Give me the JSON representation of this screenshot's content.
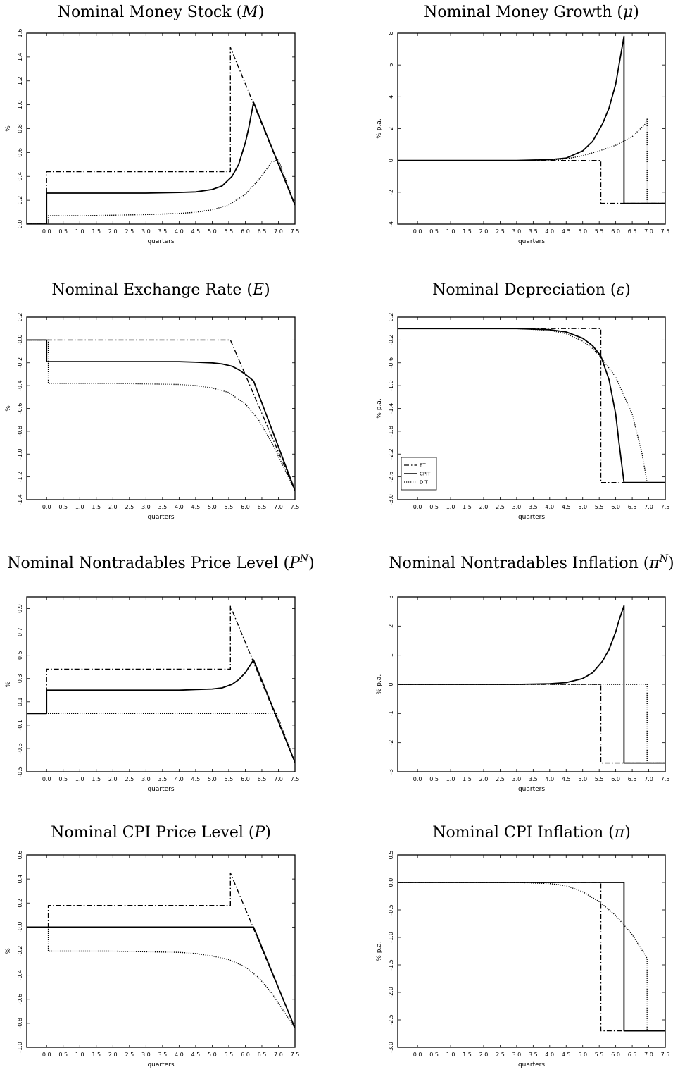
{
  "chart_data": [
    {
      "type": "line",
      "title": "Nominal Money Stock (M)",
      "xlabel": "quarters",
      "ylabel": "%",
      "xlim": [
        -0.6,
        7.5
      ],
      "ylim": [
        0,
        1.6
      ],
      "xticks": [
        "0.0",
        "0.5",
        "1.0",
        "1.5",
        "2.0",
        "2.5",
        "3.0",
        "3.5",
        "4.0",
        "4.5",
        "5.0",
        "5.5",
        "6.0",
        "6.5",
        "7.0",
        "7.5"
      ],
      "yticks": [
        "0.0",
        "0.2",
        "0.4",
        "0.6",
        "0.8",
        "1.0",
        "1.2",
        "1.4",
        "1.6"
      ],
      "series": [
        {
          "name": "ET",
          "style": "dashdot",
          "x": [
            -0.6,
            0,
            0,
            5.55,
            5.55,
            7.5
          ],
          "y": [
            0,
            0,
            0.44,
            0.44,
            1.48,
            0.16
          ]
        },
        {
          "name": "CPIT",
          "style": "solid",
          "x": [
            -0.6,
            0,
            0,
            1,
            2,
            3,
            4,
            4.5,
            5,
            5.3,
            5.6,
            5.8,
            6,
            6.1,
            6.25,
            7.5
          ],
          "y": [
            0,
            0,
            0.26,
            0.26,
            0.26,
            0.26,
            0.265,
            0.27,
            0.29,
            0.32,
            0.4,
            0.5,
            0.68,
            0.8,
            1.02,
            0.16
          ]
        },
        {
          "name": "DIT",
          "style": "dotted",
          "x": [
            -0.6,
            0.05,
            0.05,
            1,
            2,
            3,
            4,
            4.5,
            5,
            5.5,
            6,
            6.4,
            6.8,
            7.0,
            7.5
          ],
          "y": [
            0,
            0,
            0.07,
            0.07,
            0.075,
            0.08,
            0.09,
            0.1,
            0.12,
            0.16,
            0.25,
            0.37,
            0.52,
            0.54,
            0.16
          ]
        }
      ]
    },
    {
      "type": "line",
      "title": "Nominal Money Growth (μ)",
      "xlabel": "quarters",
      "ylabel": "% p.a.",
      "xlim": [
        -0.6,
        7.5
      ],
      "ylim": [
        -4,
        8
      ],
      "xticks": [
        "0.0",
        "0.5",
        "1.0",
        "1.5",
        "2.0",
        "2.5",
        "3.0",
        "3.5",
        "4.0",
        "4.5",
        "5.0",
        "5.5",
        "6.0",
        "6.5",
        "7.0",
        "7.5"
      ],
      "yticks": [
        "-4",
        "-2",
        "0",
        "2",
        "4",
        "6",
        "8"
      ],
      "series": [
        {
          "name": "ET",
          "style": "dashdot",
          "x": [
            -0.6,
            5.55,
            5.55,
            7.5
          ],
          "y": [
            0,
            0,
            -2.7,
            -2.7
          ]
        },
        {
          "name": "CPIT",
          "style": "solid",
          "x": [
            -0.6,
            3,
            4,
            4.5,
            5,
            5.3,
            5.6,
            5.8,
            6.0,
            6.1,
            6.25,
            6.25,
            7.5
          ],
          "y": [
            0,
            0,
            0.05,
            0.15,
            0.6,
            1.2,
            2.3,
            3.3,
            4.8,
            6,
            7.8,
            -2.7,
            -2.7
          ]
        },
        {
          "name": "DIT",
          "style": "dotted",
          "x": [
            -0.6,
            3,
            4,
            4.5,
            5,
            5.5,
            6,
            6.5,
            6.9,
            6.95,
            6.95,
            7.5
          ],
          "y": [
            0,
            0,
            0.03,
            0.1,
            0.3,
            0.6,
            0.95,
            1.5,
            2.3,
            2.6,
            -2.7,
            -2.7
          ]
        }
      ]
    },
    {
      "type": "line",
      "title": "Nominal Exchange Rate (E)",
      "xlabel": "quarters",
      "ylabel": "%",
      "xlim": [
        -0.6,
        7.5
      ],
      "ylim": [
        -1.4,
        0.2
      ],
      "xticks": [
        "0.0",
        "0.5",
        "1.0",
        "1.5",
        "2.0",
        "2.5",
        "3.0",
        "3.5",
        "4.0",
        "4.5",
        "5.0",
        "5.5",
        "6.0",
        "6.5",
        "7.0",
        "7.5"
      ],
      "yticks": [
        "-1.4",
        "-1.2",
        "-1.0",
        "-0.8",
        "-0.6",
        "-0.4",
        "-0.2",
        "-0.0",
        "0.2"
      ],
      "series": [
        {
          "name": "ET",
          "style": "dashdot",
          "x": [
            -0.6,
            5.55,
            7.5
          ],
          "y": [
            0,
            0,
            -1.32
          ]
        },
        {
          "name": "CPIT",
          "style": "solid",
          "x": [
            -0.6,
            0,
            0,
            2,
            3,
            4,
            4.5,
            5,
            5.3,
            5.6,
            5.8,
            6,
            6.25,
            7.5
          ],
          "y": [
            0,
            0,
            -0.19,
            -0.19,
            -0.19,
            -0.19,
            -0.195,
            -0.2,
            -0.21,
            -0.23,
            -0.26,
            -0.3,
            -0.36,
            -1.32
          ]
        },
        {
          "name": "DIT",
          "style": "dotted",
          "x": [
            -0.6,
            0.05,
            0.05,
            2,
            3,
            4,
            4.5,
            5,
            5.5,
            6,
            6.4,
            6.8,
            7.5
          ],
          "y": [
            0,
            0,
            -0.38,
            -0.38,
            -0.385,
            -0.39,
            -0.4,
            -0.42,
            -0.46,
            -0.56,
            -0.7,
            -0.9,
            -1.32
          ]
        }
      ]
    },
    {
      "type": "line",
      "title": "Nominal Depreciation (ε)",
      "xlabel": "quarters",
      "ylabel": "% p.a.",
      "xlim": [
        -0.6,
        7.5
      ],
      "ylim": [
        -3.0,
        0.2
      ],
      "xticks": [
        "0.0",
        "0.5",
        "1.0",
        "1.5",
        "2.0",
        "2.5",
        "3.0",
        "3.5",
        "4.0",
        "4.5",
        "5.0",
        "5.5",
        "6.0",
        "6.5",
        "7.0",
        "7.5"
      ],
      "yticks": [
        "-3.0",
        "-2.6",
        "-2.2",
        "-1.8",
        "-1.4",
        "-1.0",
        "-0.6",
        "-0.2",
        "0.2"
      ],
      "legend": {
        "position": "bottom-left",
        "entries": [
          "ET",
          "CPIT",
          "DIT"
        ]
      },
      "series": [
        {
          "name": "ET",
          "style": "dashdot",
          "x": [
            -0.6,
            5.55,
            5.55,
            7.5
          ],
          "y": [
            0,
            0,
            -2.7,
            -2.7
          ]
        },
        {
          "name": "CPIT",
          "style": "solid",
          "x": [
            -0.6,
            3,
            4,
            4.5,
            5,
            5.3,
            5.55,
            5.8,
            6.0,
            6.1,
            6.25,
            7.5
          ],
          "y": [
            0,
            0,
            -0.02,
            -0.06,
            -0.17,
            -0.3,
            -0.48,
            -0.9,
            -1.5,
            -2.0,
            -2.7,
            -2.7
          ]
        },
        {
          "name": "DIT",
          "style": "dotted",
          "x": [
            -0.6,
            3,
            4,
            4.5,
            5,
            5.3,
            5.55,
            6,
            6.5,
            6.8,
            6.95,
            7.5
          ],
          "y": [
            0,
            0,
            -0.03,
            -0.09,
            -0.22,
            -0.35,
            -0.5,
            -0.85,
            -1.5,
            -2.2,
            -2.7,
            -2.7
          ]
        }
      ]
    },
    {
      "type": "line",
      "title": "Nominal Nontradables Price Level (P^N)",
      "xlabel": "quarters",
      "ylabel": "%",
      "xlim": [
        -0.6,
        7.5
      ],
      "ylim": [
        -0.5,
        1.0
      ],
      "xticks": [
        "0.0",
        "0.5",
        "1.0",
        "1.5",
        "2.0",
        "2.5",
        "3.0",
        "3.5",
        "4.0",
        "4.5",
        "5.0",
        "5.5",
        "6.0",
        "6.5",
        "7.0",
        "7.5"
      ],
      "yticks": [
        "-0.5",
        "-0.3",
        "-0.1",
        "0.1",
        "0.3",
        "0.5",
        "0.7",
        "0.9"
      ],
      "series": [
        {
          "name": "ET",
          "style": "dashdot",
          "x": [
            -0.6,
            0,
            0,
            5.55,
            5.55,
            7.5
          ],
          "y": [
            0,
            0,
            0.38,
            0.38,
            0.92,
            -0.42
          ]
        },
        {
          "name": "CPIT",
          "style": "solid",
          "x": [
            -0.6,
            0,
            0,
            2,
            3,
            4,
            4.5,
            5,
            5.3,
            5.6,
            5.8,
            6,
            6.25,
            7.5
          ],
          "y": [
            0,
            0,
            0.2,
            0.2,
            0.2,
            0.2,
            0.205,
            0.21,
            0.22,
            0.25,
            0.29,
            0.35,
            0.46,
            -0.42
          ]
        },
        {
          "name": "DIT",
          "style": "dotted",
          "x": [
            -0.6,
            6.95,
            7.5
          ],
          "y": [
            0,
            0,
            -0.42
          ]
        }
      ]
    },
    {
      "type": "line",
      "title": "Nominal Nontradables Inflation (π^N)",
      "xlabel": "quarters",
      "ylabel": "% p.a.",
      "xlim": [
        -0.6,
        7.5
      ],
      "ylim": [
        -3,
        3
      ],
      "xticks": [
        "0.0",
        "0.5",
        "1.0",
        "1.5",
        "2.0",
        "2.5",
        "3.0",
        "3.5",
        "4.0",
        "4.5",
        "5.0",
        "5.5",
        "6.0",
        "6.5",
        "7.0",
        "7.5"
      ],
      "yticks": [
        "-3",
        "-2",
        "-1",
        "0",
        "1",
        "2",
        "3"
      ],
      "series": [
        {
          "name": "ET",
          "style": "dashdot",
          "x": [
            -0.6,
            5.55,
            5.55,
            7.5
          ],
          "y": [
            0,
            0,
            -2.7,
            -2.7
          ]
        },
        {
          "name": "CPIT",
          "style": "solid",
          "x": [
            -0.6,
            3,
            4,
            4.5,
            5,
            5.3,
            5.6,
            5.8,
            6.0,
            6.1,
            6.25,
            6.25,
            7.5
          ],
          "y": [
            0,
            0,
            0.02,
            0.06,
            0.2,
            0.4,
            0.8,
            1.2,
            1.8,
            2.2,
            2.7,
            -2.7,
            -2.7
          ]
        },
        {
          "name": "DIT",
          "style": "dotted",
          "x": [
            -0.6,
            6.95,
            6.95,
            7.5
          ],
          "y": [
            0,
            0,
            -2.7,
            -2.7
          ]
        }
      ]
    },
    {
      "type": "line",
      "title": "Nominal CPI Price Level (P)",
      "xlabel": "quarters",
      "ylabel": "%",
      "xlim": [
        -0.6,
        7.5
      ],
      "ylim": [
        -1.0,
        0.6
      ],
      "xticks": [
        "0.0",
        "0.5",
        "1.0",
        "1.5",
        "2.0",
        "2.5",
        "3.0",
        "3.5",
        "4.0",
        "4.5",
        "5.0",
        "5.5",
        "6.0",
        "6.5",
        "7.0",
        "7.5"
      ],
      "yticks": [
        "-1.0",
        "-0.8",
        "-0.6",
        "-0.4",
        "-0.2",
        "-0.0",
        "0.2",
        "0.4",
        "0.6"
      ],
      "series": [
        {
          "name": "ET",
          "style": "dashdot",
          "x": [
            -0.6,
            0.05,
            0.05,
            5.55,
            5.55,
            7.5
          ],
          "y": [
            0,
            0,
            0.18,
            0.18,
            0.45,
            -0.84
          ]
        },
        {
          "name": "CPIT",
          "style": "solid",
          "x": [
            -0.6,
            6.25,
            7.5
          ],
          "y": [
            0,
            0,
            -0.84
          ]
        },
        {
          "name": "DIT",
          "style": "dotted",
          "x": [
            -0.6,
            0.05,
            0.05,
            2,
            3,
            4,
            4.5,
            5,
            5.5,
            6,
            6.4,
            6.8,
            7.5
          ],
          "y": [
            0,
            0,
            -0.2,
            -0.2,
            -0.205,
            -0.21,
            -0.22,
            -0.24,
            -0.27,
            -0.33,
            -0.42,
            -0.55,
            -0.84
          ]
        }
      ]
    },
    {
      "type": "line",
      "title": "Nominal CPI Inflation (π)",
      "xlabel": "quarters",
      "ylabel": "% p.a.",
      "xlim": [
        -0.6,
        7.5
      ],
      "ylim": [
        -3.0,
        0.5
      ],
      "xticks": [
        "0.0",
        "0.5",
        "1.0",
        "1.5",
        "2.0",
        "2.5",
        "3.0",
        "3.5",
        "4.0",
        "4.5",
        "5.0",
        "5.5",
        "6.0",
        "6.5",
        "7.0",
        "7.5"
      ],
      "yticks": [
        "-3.0",
        "-2.5",
        "-2.0",
        "-1.5",
        "-1.0",
        "-0.5",
        "0.0",
        "0.5"
      ],
      "series": [
        {
          "name": "ET",
          "style": "dashdot",
          "x": [
            -0.6,
            5.55,
            5.55,
            7.5
          ],
          "y": [
            0,
            0,
            -2.7,
            -2.7
          ]
        },
        {
          "name": "CPIT",
          "style": "solid",
          "x": [
            -0.6,
            6.25,
            6.25,
            7.5
          ],
          "y": [
            0,
            0,
            -2.7,
            -2.7
          ]
        },
        {
          "name": "DIT",
          "style": "dotted",
          "x": [
            -0.6,
            3,
            4,
            4.5,
            5,
            5.5,
            6,
            6.5,
            6.95,
            6.95,
            7.5
          ],
          "y": [
            0,
            0,
            -0.02,
            -0.06,
            -0.17,
            -0.35,
            -0.6,
            -0.95,
            -1.38,
            -2.7,
            -2.7
          ]
        }
      ]
    }
  ]
}
